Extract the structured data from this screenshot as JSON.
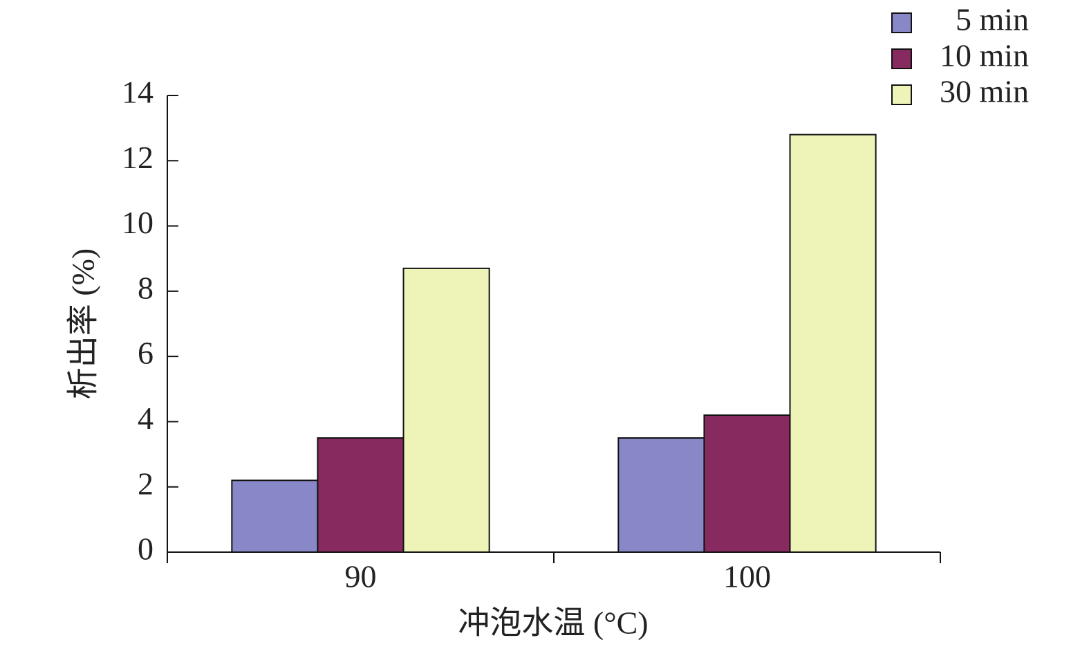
{
  "chart_data": {
    "type": "bar",
    "categories": [
      "90",
      "100"
    ],
    "series": [
      {
        "name": "5 min",
        "color": "#8888c8",
        "values": [
          2.2,
          3.5
        ]
      },
      {
        "name": "10 min",
        "color": "#862a60",
        "values": [
          3.5,
          4.2
        ]
      },
      {
        "name": "30 min",
        "color": "#eef4b8",
        "values": [
          8.7,
          12.8
        ]
      }
    ],
    "ylim": [
      0,
      14
    ],
    "yticks": [
      0,
      2,
      4,
      6,
      8,
      10,
      12,
      14
    ],
    "xlabel": "冲泡水温 (°C)",
    "ylabel": "析出率 (%)",
    "legend": "upper right"
  }
}
